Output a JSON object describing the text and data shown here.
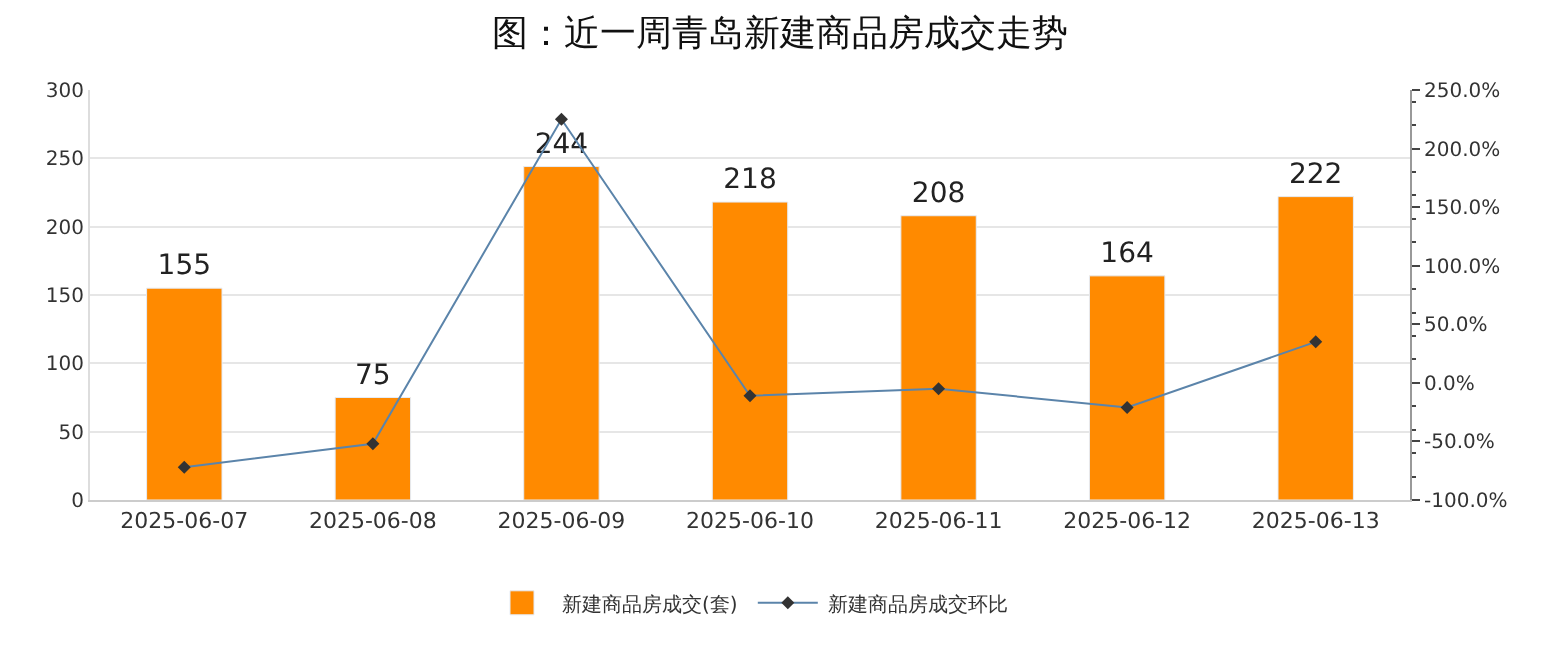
{
  "chart_data": {
    "type": "bar",
    "title": "图：近一周青岛新建商品房成交走势",
    "categories": [
      "2025-06-07",
      "2025-06-08",
      "2025-06-09",
      "2025-06-10",
      "2025-06-11",
      "2025-06-12",
      "2025-06-13"
    ],
    "series": [
      {
        "name": "新建商品房成交(套)",
        "color": "#ff8a00",
        "values": [
          155,
          75,
          244,
          218,
          208,
          164,
          222
        ],
        "value_labels": [
          "155",
          "75",
          "244",
          "218",
          "208",
          "164",
          "222"
        ]
      },
      {
        "name": "新建商品房成交环比",
        "type": "line",
        "axis": "y2",
        "color": "#5b84aa",
        "marker": "diamond",
        "values": [
          -72,
          -52,
          225,
          -11,
          -5,
          -21,
          35
        ]
      }
    ],
    "ylim": [
      0,
      300
    ],
    "yticks": [
      0,
      50,
      100,
      150,
      200,
      250,
      300
    ],
    "y2lim": [
      -100,
      250
    ],
    "y2ticks": [
      {
        "value": -100,
        "label": "-100.0%"
      },
      {
        "value": -50,
        "label": "-50.0%"
      },
      {
        "value": 0,
        "label": "0.0%"
      },
      {
        "value": 50,
        "label": "50.0%"
      },
      {
        "value": 100,
        "label": "100.0%"
      },
      {
        "value": 150,
        "label": "150.0%"
      },
      {
        "value": 200,
        "label": "200.0%"
      },
      {
        "value": 250,
        "label": "250.0%"
      }
    ],
    "grid": "y",
    "legend": "bottom"
  }
}
